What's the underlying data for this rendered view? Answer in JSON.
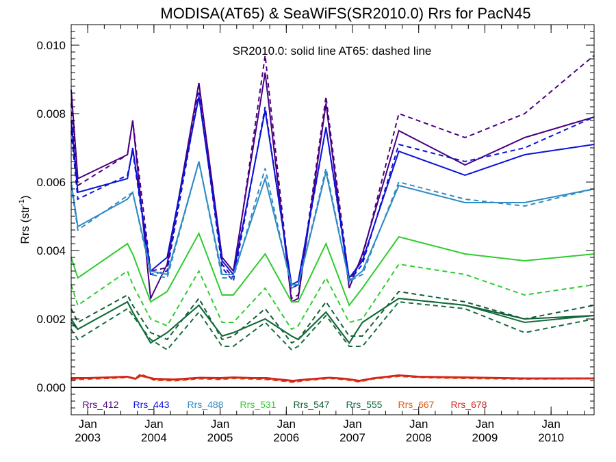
{
  "chart_data": {
    "type": "line",
    "title": "MODISA(AT65) & SeaWiFS(SR2010.0)  Rrs for PacN45",
    "annotation": "SR2010.0: solid line   AT65: dashed line",
    "ylabel_main": "Rrs (str",
    "ylabel_sup": "-1",
    "ylabel_end": ")",
    "ylim": [
      -0.0008,
      0.0106
    ],
    "xlim": [
      2002.75,
      2010.65
    ],
    "yticks": [
      0.0,
      0.002,
      0.004,
      0.006,
      0.008,
      0.01
    ],
    "ytick_labels": [
      "0.000",
      "0.002",
      "0.004",
      "0.006",
      "0.008",
      "0.010"
    ],
    "xticks": [
      2003.0,
      2004.0,
      2005.0,
      2006.0,
      2007.0,
      2008.0,
      2009.0,
      2010.0
    ],
    "xtick_month_labels": [
      "Jan",
      "Jan",
      "Jan",
      "Jan",
      "Jan",
      "Jan",
      "Jan",
      "Jan"
    ],
    "xtick_year_labels": [
      "2003",
      "2004",
      "2005",
      "2006",
      "2007",
      "2008",
      "2009",
      "2010"
    ],
    "zero_line": true,
    "grid": false,
    "legend_position": "bottom",
    "series": [
      {
        "name": "Rrs_412",
        "color": "#4b0082",
        "sr": {
          "x": [
            2002.75,
            2002.85,
            2003.6,
            2003.68,
            2003.95,
            2004.2,
            2004.68,
            2005.03,
            2005.2,
            2005.68,
            2006.08,
            2006.18,
            2006.6,
            2006.95,
            2007.15,
            2007.7,
            2008.7,
            2009.6,
            2010.65
          ],
          "y": [
            0.0087,
            0.0061,
            0.0068,
            0.0078,
            0.0026,
            0.0036,
            0.0089,
            0.0038,
            0.0034,
            0.0092,
            0.0025,
            0.0026,
            0.0083,
            0.0029,
            0.0039,
            0.0075,
            0.0065,
            0.0073,
            0.0079
          ]
        },
        "at": {
          "x": [
            2002.75,
            2002.85,
            2003.6,
            2003.68,
            2003.95,
            2004.2,
            2004.68,
            2005.03,
            2005.2,
            2005.68,
            2006.08,
            2006.18,
            2006.6,
            2006.95,
            2007.15,
            2007.7,
            2008.7,
            2009.6,
            2010.65
          ],
          "y": [
            0.0083,
            0.0059,
            0.0068,
            0.0078,
            0.0034,
            0.0035,
            0.0088,
            0.0036,
            0.0032,
            0.0097,
            0.0026,
            0.0027,
            0.0085,
            0.0031,
            0.0038,
            0.008,
            0.0073,
            0.008,
            0.0097
          ]
        }
      },
      {
        "name": "Rrs_443",
        "color": "#0a12d8",
        "sr": {
          "x": [
            2002.75,
            2002.85,
            2003.6,
            2003.68,
            2003.95,
            2004.2,
            2004.68,
            2005.03,
            2005.2,
            2005.68,
            2006.08,
            2006.18,
            2006.6,
            2006.95,
            2007.15,
            2007.7,
            2008.7,
            2009.6,
            2010.65
          ],
          "y": [
            0.0078,
            0.0057,
            0.0061,
            0.007,
            0.0034,
            0.0038,
            0.0085,
            0.0037,
            0.0033,
            0.0081,
            0.003,
            0.0031,
            0.0076,
            0.0032,
            0.0037,
            0.0069,
            0.0062,
            0.0068,
            0.0071
          ]
        },
        "at": {
          "x": [
            2002.75,
            2002.85,
            2003.6,
            2003.68,
            2003.95,
            2004.2,
            2004.68,
            2005.03,
            2005.2,
            2005.68,
            2006.08,
            2006.18,
            2006.6,
            2006.95,
            2007.15,
            2007.7,
            2008.7,
            2009.6,
            2010.65
          ],
          "y": [
            0.0075,
            0.0055,
            0.0062,
            0.0069,
            0.0033,
            0.0034,
            0.0086,
            0.0035,
            0.0031,
            0.0082,
            0.0029,
            0.003,
            0.0076,
            0.0031,
            0.0036,
            0.0071,
            0.0066,
            0.007,
            0.0079
          ]
        }
      },
      {
        "name": "Rrs_488",
        "color": "#2f8bc4",
        "sr": {
          "x": [
            2002.75,
            2002.85,
            2003.6,
            2003.68,
            2003.95,
            2004.2,
            2004.68,
            2005.03,
            2005.2,
            2005.68,
            2006.08,
            2006.18,
            2006.6,
            2006.95,
            2007.15,
            2007.7,
            2008.7,
            2009.6,
            2010.65
          ],
          "y": [
            0.006,
            0.0047,
            0.0055,
            0.0057,
            0.0034,
            0.0033,
            0.0066,
            0.0033,
            0.0033,
            0.0061,
            0.003,
            0.003,
            0.0063,
            0.0031,
            0.0034,
            0.0059,
            0.0054,
            0.0054,
            0.0058
          ]
        },
        "at": {
          "x": [
            2002.75,
            2002.85,
            2003.6,
            2003.68,
            2003.95,
            2004.2,
            2004.68,
            2005.03,
            2005.2,
            2005.68,
            2006.08,
            2006.18,
            2006.6,
            2006.95,
            2007.15,
            2007.7,
            2008.7,
            2009.6,
            2010.65
          ],
          "y": [
            0.0059,
            0.0046,
            0.0056,
            0.0057,
            0.0033,
            0.0032,
            0.0066,
            0.0032,
            0.0032,
            0.0064,
            0.0029,
            0.003,
            0.0064,
            0.0031,
            0.0033,
            0.006,
            0.0055,
            0.0053,
            0.0058
          ]
        }
      },
      {
        "name": "Rrs_531",
        "color": "#2ecc2e",
        "sr": {
          "x": [
            2002.75,
            2002.85,
            2003.6,
            2003.68,
            2003.95,
            2004.2,
            2004.68,
            2005.03,
            2005.2,
            2005.68,
            2006.08,
            2006.18,
            2006.6,
            2006.95,
            2007.15,
            2007.7,
            2008.7,
            2009.6,
            2010.65
          ],
          "y": [
            0.0038,
            0.0032,
            0.0042,
            0.0039,
            0.0025,
            0.0028,
            0.0045,
            0.0027,
            0.0027,
            0.0039,
            0.0025,
            0.0025,
            0.0042,
            0.0024,
            0.0029,
            0.0044,
            0.0039,
            0.0037,
            0.0039
          ]
        },
        "at": {
          "x": [
            2002.75,
            2002.85,
            2003.6,
            2003.68,
            2003.95,
            2004.2,
            2004.68,
            2005.03,
            2005.2,
            2005.68,
            2006.08,
            2006.18,
            2006.6,
            2006.95,
            2007.15,
            2007.7,
            2008.7,
            2009.6,
            2010.65
          ],
          "y": [
            0.003,
            0.0024,
            0.0034,
            0.003,
            0.002,
            0.0018,
            0.0034,
            0.0019,
            0.0019,
            0.0029,
            0.0017,
            0.0018,
            0.0032,
            0.0019,
            0.002,
            0.0036,
            0.0033,
            0.0027,
            0.003
          ]
        }
      },
      {
        "name": "Rrs_547",
        "color": "#0f5e34",
        "sr": {
          "x": [
            2002.75,
            2002.85,
            2003.6,
            2003.68,
            2003.95,
            2004.2,
            2004.68,
            2005.03,
            2005.2,
            2005.68,
            2006.08,
            2006.18,
            2006.6,
            2006.95,
            2007.15,
            2007.7,
            2008.7,
            2009.6,
            2010.65
          ],
          "y": [
            0.002,
            0.0017,
            0.0025,
            0.0022,
            0.0013,
            0.0016,
            0.0024,
            0.0015,
            0.0016,
            0.002,
            0.0015,
            0.0014,
            0.0022,
            0.0013,
            0.0019,
            0.0026,
            0.0024,
            0.002,
            0.0021
          ]
        },
        "at": {
          "x": [
            2002.75,
            2002.85,
            2003.6,
            2003.68,
            2003.95,
            2004.2,
            2004.68,
            2005.03,
            2005.2,
            2005.68,
            2006.08,
            2006.18,
            2006.6,
            2006.95,
            2007.15,
            2007.7,
            2008.7,
            2009.6,
            2010.65
          ],
          "y": [
            0.0023,
            0.0019,
            0.0027,
            0.0024,
            0.0016,
            0.0014,
            0.0026,
            0.0014,
            0.0015,
            0.0023,
            0.0013,
            0.0014,
            0.0025,
            0.0015,
            0.0015,
            0.0028,
            0.0025,
            0.002,
            0.0024
          ]
        }
      },
      {
        "name": "Rrs_555",
        "color": "#146b3a",
        "sr": {
          "x": [
            2002.75,
            2002.85,
            2003.6,
            2003.68,
            2003.95,
            2004.2,
            2004.68,
            2005.03,
            2005.2,
            2005.68,
            2006.08,
            2006.18,
            2006.6,
            2006.95,
            2007.15,
            2007.7,
            2008.7,
            2009.6,
            2010.65
          ],
          "y": [
            0.0019,
            0.0017,
            0.0025,
            0.0022,
            0.0013,
            0.0016,
            0.0024,
            0.0015,
            0.0016,
            0.002,
            0.0015,
            0.0014,
            0.0022,
            0.0013,
            0.0019,
            0.0026,
            0.0024,
            0.0019,
            0.0021
          ]
        },
        "at": {
          "x": [
            2002.75,
            2002.85,
            2003.6,
            2003.68,
            2003.95,
            2004.2,
            2004.68,
            2005.03,
            2005.2,
            2005.68,
            2006.08,
            2006.18,
            2006.6,
            2006.95,
            2007.15,
            2007.7,
            2008.7,
            2009.6,
            2010.65
          ],
          "y": [
            0.0017,
            0.0014,
            0.0023,
            0.0021,
            0.0014,
            0.0011,
            0.0022,
            0.0012,
            0.0012,
            0.0019,
            0.0011,
            0.0012,
            0.0021,
            0.0012,
            0.0012,
            0.0025,
            0.0023,
            0.0016,
            0.002
          ]
        }
      },
      {
        "name": "Rrs_667",
        "color": "#e05a10",
        "sr": {
          "x": [
            2002.75,
            2003.0,
            2003.3,
            2003.6,
            2003.72,
            2003.8,
            2004.0,
            2004.3,
            2004.7,
            2005.0,
            2005.2,
            2005.5,
            2005.7,
            2006.1,
            2006.3,
            2006.65,
            2006.9,
            2007.1,
            2007.3,
            2007.7,
            2008.0,
            2008.7,
            2009.6,
            2010.65
          ],
          "y": [
            0.00025,
            0.00026,
            0.00028,
            0.0003,
            0.00024,
            0.00033,
            0.00024,
            0.00022,
            0.00027,
            0.00026,
            0.00028,
            0.00026,
            0.00026,
            0.00018,
            0.00022,
            0.00027,
            0.00024,
            0.00018,
            0.00025,
            0.00034,
            0.0003,
            0.00028,
            0.00025,
            0.00025
          ]
        },
        "at": {
          "x": [
            2002.75,
            2003.0,
            2003.3,
            2003.6,
            2003.72,
            2003.8,
            2004.0,
            2004.3,
            2004.7,
            2005.0,
            2005.2,
            2005.5,
            2005.7,
            2006.1,
            2006.3,
            2006.65,
            2006.9,
            2007.1,
            2007.3,
            2007.7,
            2008.0,
            2008.7,
            2009.6,
            2010.65
          ],
          "y": [
            0.00022,
            0.00024,
            0.00026,
            0.00029,
            0.00025,
            0.0004,
            0.00021,
            0.00019,
            0.00025,
            0.00023,
            0.00026,
            0.00024,
            0.00023,
            0.00015,
            0.0002,
            0.00026,
            0.00022,
            0.00016,
            0.00024,
            0.00032,
            0.00029,
            0.00026,
            0.00024,
            0.00025
          ]
        }
      },
      {
        "name": "Rrs_678",
        "color": "#d42020",
        "sr": {
          "x": [
            2002.75,
            2003.0,
            2003.3,
            2003.6,
            2003.72,
            2003.8,
            2004.0,
            2004.3,
            2004.7,
            2005.0,
            2005.2,
            2005.5,
            2005.7,
            2006.1,
            2006.3,
            2006.65,
            2006.9,
            2007.1,
            2007.3,
            2007.7,
            2008.0,
            2008.7,
            2009.6,
            2010.65
          ],
          "y": [
            0.00028,
            0.00028,
            0.0003,
            0.00032,
            0.00026,
            0.00035,
            0.00026,
            0.00024,
            0.00029,
            0.00028,
            0.0003,
            0.00028,
            0.00028,
            0.0002,
            0.00024,
            0.00029,
            0.00026,
            0.0002,
            0.00027,
            0.00036,
            0.00032,
            0.0003,
            0.00027,
            0.00027
          ]
        },
        "at": {
          "x": [
            2002.75,
            2003.0,
            2003.3,
            2003.6,
            2003.72,
            2003.8,
            2004.0,
            2004.3,
            2004.7,
            2005.0,
            2005.2,
            2005.5,
            2005.7,
            2006.1,
            2006.3,
            2006.65,
            2006.9,
            2007.1,
            2007.3,
            2007.7,
            2008.0,
            2008.7,
            2009.6,
            2010.65
          ],
          "y": [
            0.00025,
            0.00026,
            0.00028,
            0.0003,
            0.00027,
            0.00038,
            0.00023,
            0.00021,
            0.00027,
            0.00025,
            0.00028,
            0.00026,
            0.00025,
            0.00017,
            0.00022,
            0.00028,
            0.00024,
            0.00018,
            0.00026,
            0.00034,
            0.0003,
            0.00028,
            0.00026,
            0.00026
          ]
        }
      }
    ]
  }
}
